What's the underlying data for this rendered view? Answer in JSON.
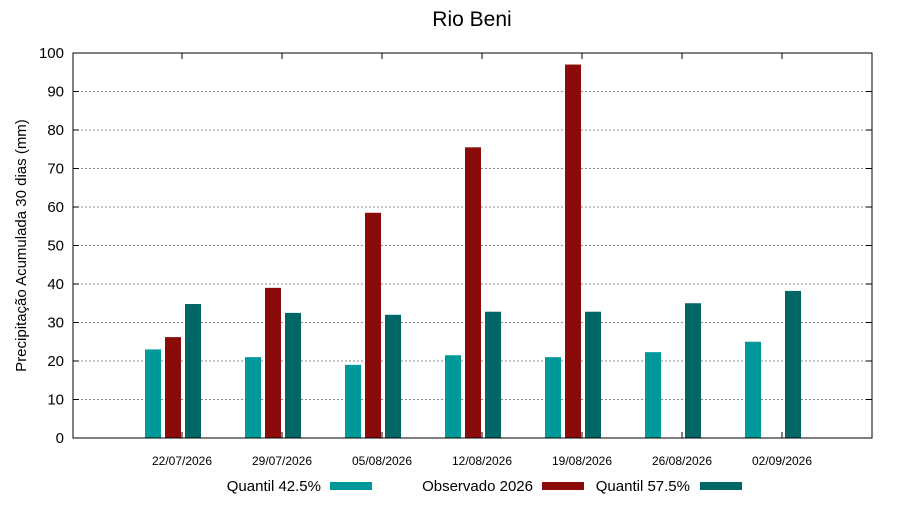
{
  "chart_data": {
    "type": "bar",
    "title": "Rio Beni",
    "xlabel": "",
    "ylabel": "Precipitação Acumulada 30 dias (mm)",
    "ylim": [
      0,
      100
    ],
    "yticks": [
      0,
      10,
      20,
      30,
      40,
      50,
      60,
      70,
      80,
      90,
      100
    ],
    "grid": true,
    "legend_position": "bottom",
    "categories": [
      "22/07/2026",
      "29/07/2026",
      "05/08/2026",
      "12/08/2026",
      "19/08/2026",
      "26/08/2026",
      "02/09/2026"
    ],
    "series": [
      {
        "name": "Quantil 42.5%",
        "color": "#009999",
        "values": [
          23.0,
          21.0,
          19.0,
          21.5,
          21.0,
          22.3,
          25.0
        ]
      },
      {
        "name": "Observado 2026",
        "color": "#8b0a0a",
        "values": [
          26.2,
          39.0,
          58.5,
          75.5,
          97.0,
          null,
          null
        ]
      },
      {
        "name": "Quantil 57.5%",
        "color": "#006666",
        "values": [
          34.8,
          32.5,
          32.0,
          32.8,
          32.8,
          35.0,
          38.2
        ]
      }
    ]
  }
}
